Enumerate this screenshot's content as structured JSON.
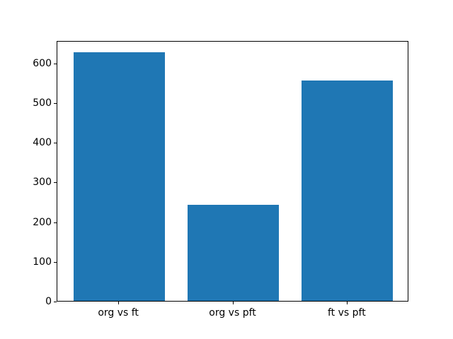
{
  "chart_data": {
    "type": "bar",
    "categories": [
      "org vs ft",
      "org vs pft",
      "ft vs pft"
    ],
    "values": [
      625,
      242,
      555
    ],
    "title": "",
    "xlabel": "",
    "ylabel": "",
    "ylim": [
      0,
      656
    ],
    "xlim": [
      -0.54,
      2.54
    ],
    "yticks": [
      0,
      100,
      200,
      300,
      400,
      500,
      600
    ],
    "bar_color": "#1f77b4",
    "bar_width": 0.8,
    "grid": false,
    "legend": false,
    "frame_color": "#000000",
    "background_color": "#ffffff"
  }
}
